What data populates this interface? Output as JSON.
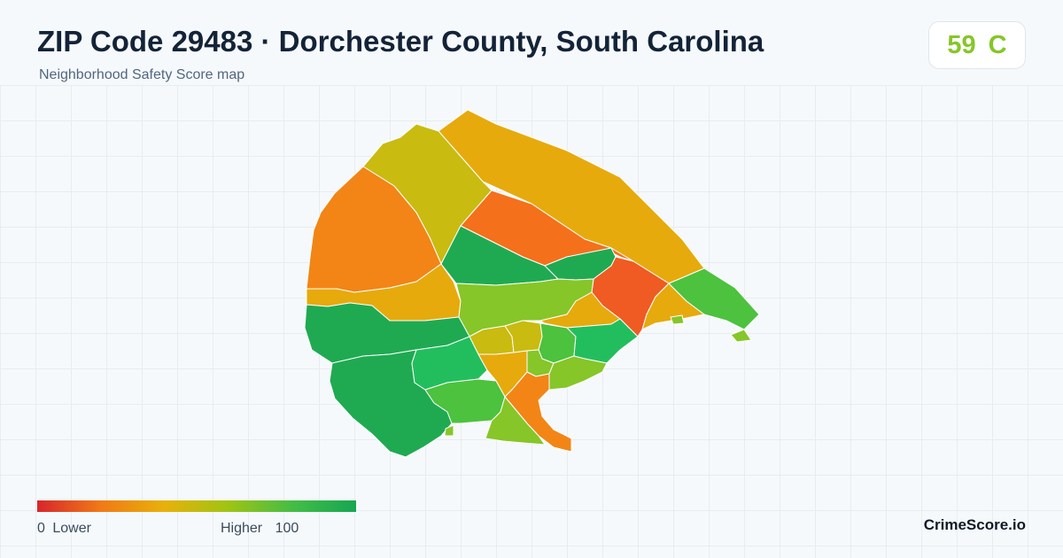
{
  "header": {
    "title": "ZIP Code 29483 · Dorchester County, South Carolina",
    "subtitle": "Neighborhood Safety Score map"
  },
  "score_badge": {
    "score": "59",
    "grade": "C",
    "color": "#86c628"
  },
  "legend": {
    "min_value": "0",
    "min_label": "Lower",
    "max_label": "Higher",
    "max_value": "100",
    "colors": [
      "#d7262b",
      "#f07a16",
      "#e8b10a",
      "#9fc413",
      "#44bd45",
      "#17a653"
    ]
  },
  "brand": "CrimeScore.io",
  "map_colors": {
    "dark_green": "#1faa52",
    "green": "#4cc23e",
    "light_green": "#86c628",
    "mint_green": "#22be5e",
    "olive": "#c9bb10",
    "gold": "#e7aa0d",
    "orange": "#f28515",
    "red_orange": "#f5701b",
    "red": "#ef5b22"
  }
}
